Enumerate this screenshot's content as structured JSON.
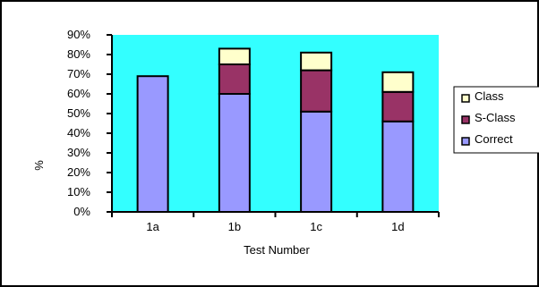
{
  "chart_data": {
    "type": "bar",
    "stacked": true,
    "categories": [
      "1a",
      "1b",
      "1c",
      "1d"
    ],
    "series": [
      {
        "name": "Correct",
        "values": [
          69,
          60,
          51,
          46
        ],
        "color": "#9999FF"
      },
      {
        "name": "S-Class",
        "values": [
          0,
          15,
          21,
          15
        ],
        "color": "#993366"
      },
      {
        "name": "Class",
        "values": [
          0,
          8,
          9,
          10
        ],
        "color": "#FFFFCC"
      }
    ],
    "xlabel": "Test Number",
    "ylabel": "%",
    "ylim": [
      0,
      90
    ],
    "yticks": [
      "0%",
      "10%",
      "20%",
      "30%",
      "40%",
      "50%",
      "60%",
      "70%",
      "80%",
      "90%"
    ],
    "plot_background": "#33FFFF",
    "grid": false,
    "legend_position": "right",
    "legend_order": [
      "Class",
      "S-Class",
      "Correct"
    ]
  }
}
